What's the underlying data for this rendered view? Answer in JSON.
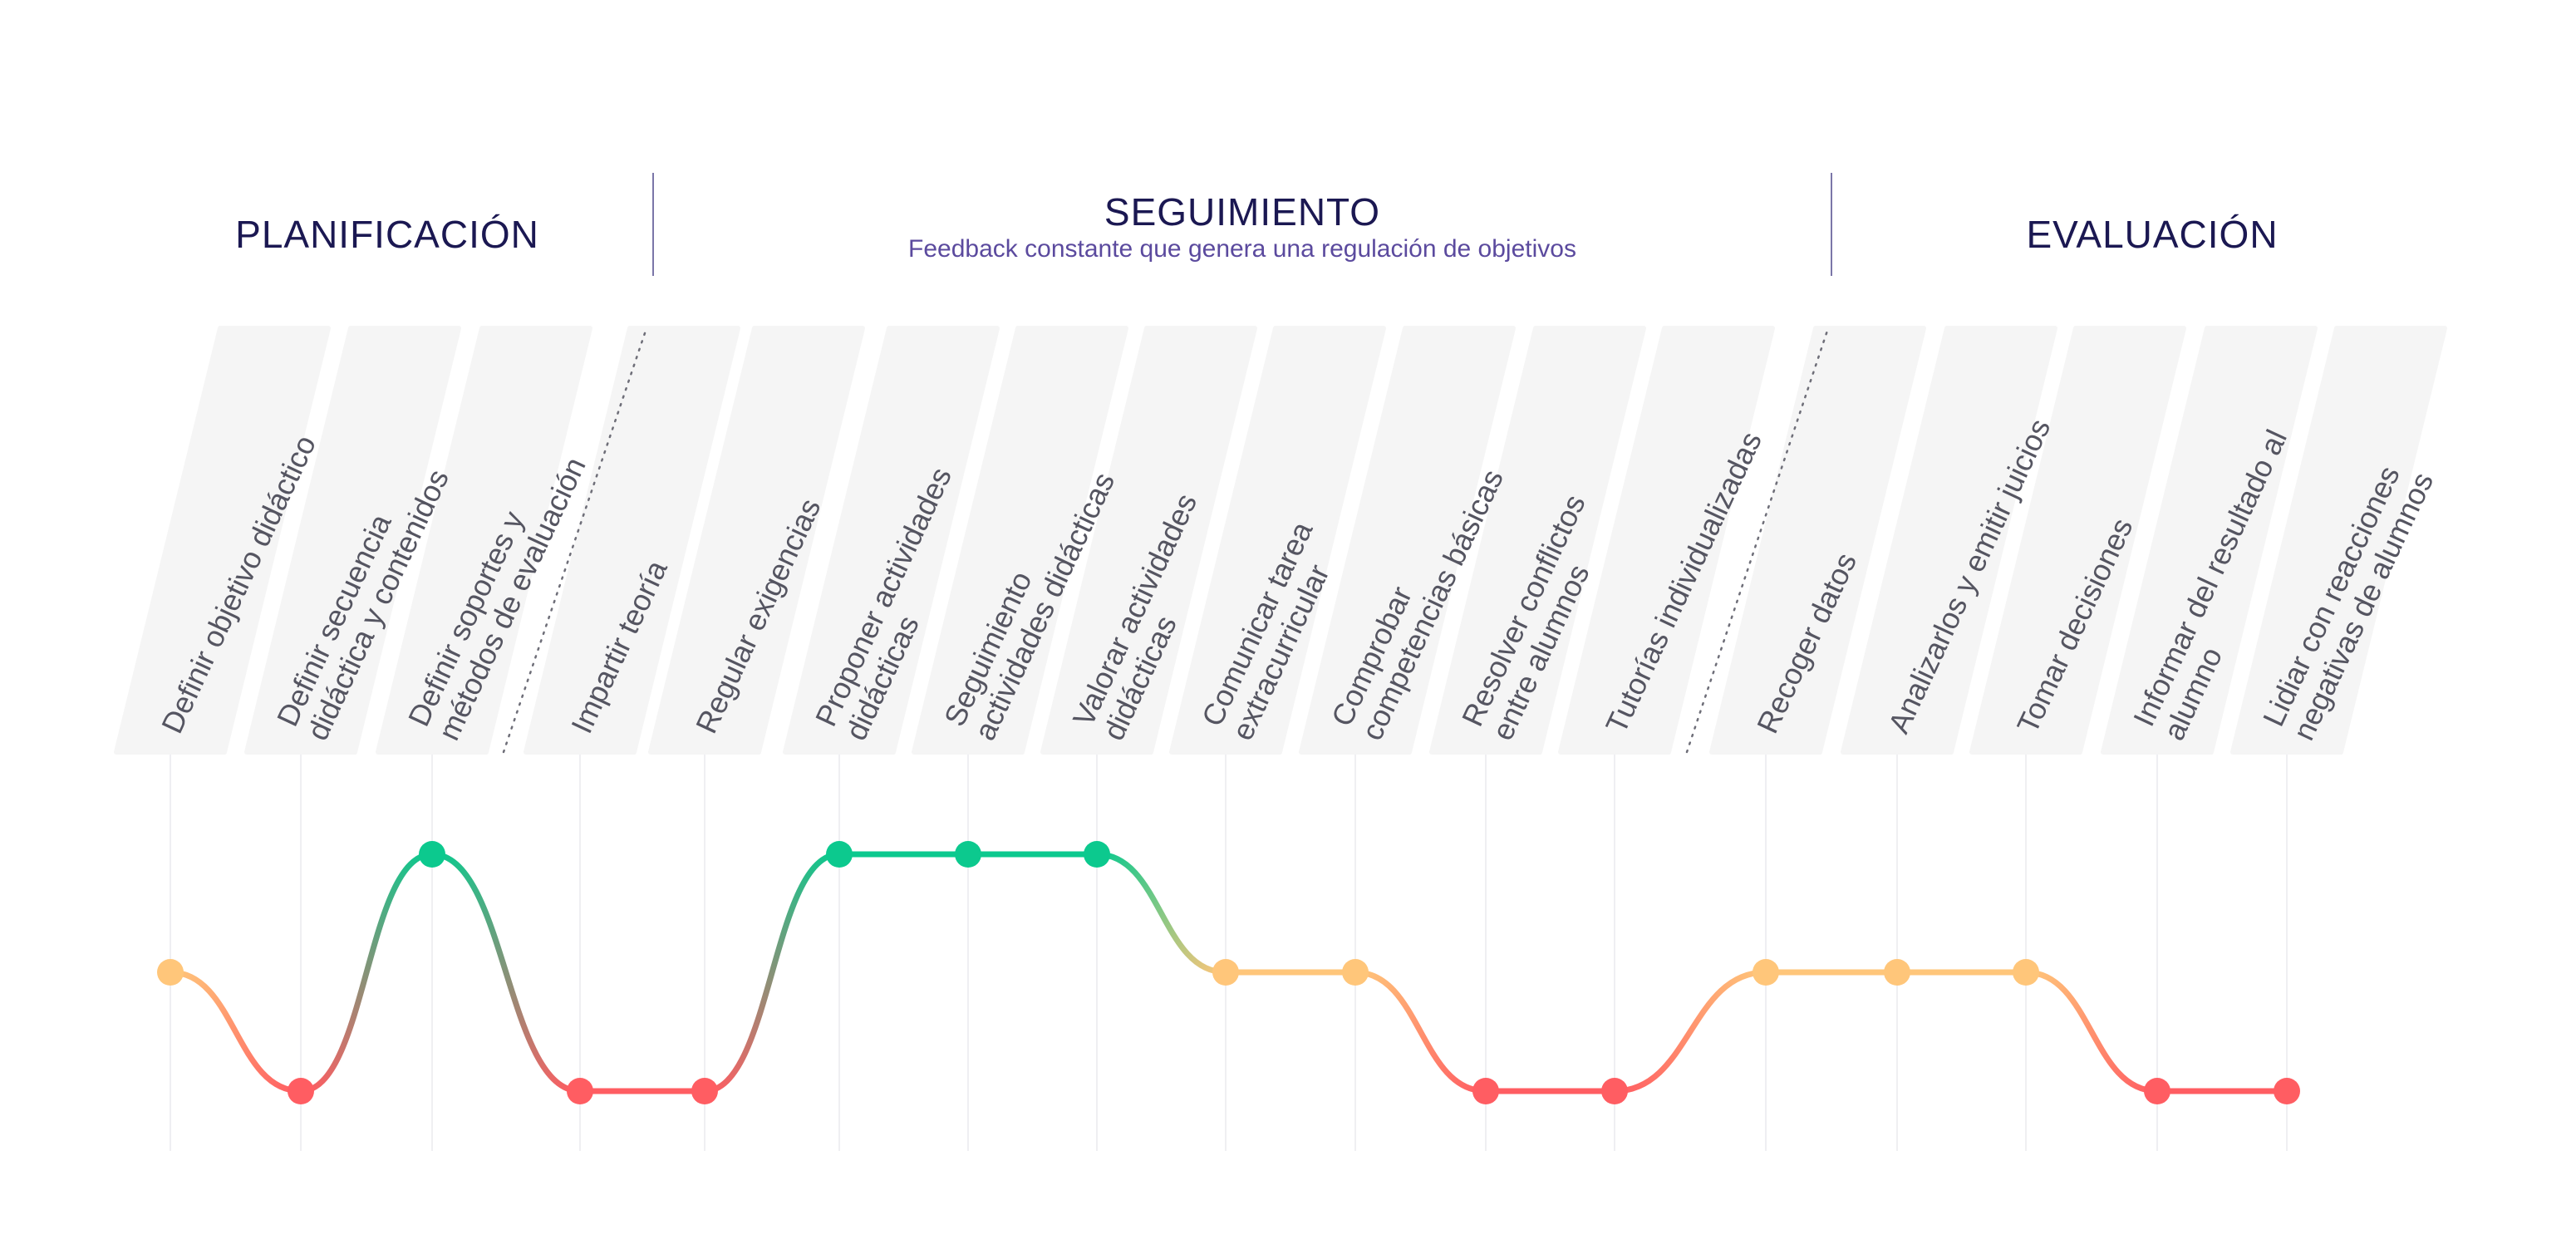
{
  "phases": {
    "planificacion": {
      "title": "PLANIFICACIÓN"
    },
    "seguimiento": {
      "title": "SEGUIMIENTO",
      "subtitle": "Feedback constante que genera una regulación de objetivos"
    },
    "evaluacion": {
      "title": "EVALUACIÓN"
    }
  },
  "steps": [
    {
      "lines": [
        "Definir objetivo didáctico"
      ],
      "level": "mid",
      "phase": "planificacion"
    },
    {
      "lines": [
        "Definir secuencia",
        "didáctica y contenidos"
      ],
      "level": "low",
      "phase": "planificacion"
    },
    {
      "lines": [
        "Definir soportes y",
        "métodos de evaluación"
      ],
      "level": "high",
      "phase": "planificacion"
    },
    {
      "lines": [
        "Impartir teoría"
      ],
      "level": "low",
      "phase": "seguimiento"
    },
    {
      "lines": [
        "Regular exigencias"
      ],
      "level": "low",
      "phase": "seguimiento"
    },
    {
      "lines": [
        "Proponer actividades",
        "didácticas"
      ],
      "level": "high",
      "phase": "seguimiento"
    },
    {
      "lines": [
        "Seguimiento",
        "actividades didácticas"
      ],
      "level": "high",
      "phase": "seguimiento"
    },
    {
      "lines": [
        "Valorar actividades",
        "didácticas"
      ],
      "level": "high",
      "phase": "seguimiento"
    },
    {
      "lines": [
        "Comunicar tarea",
        "extracurricular"
      ],
      "level": "mid",
      "phase": "seguimiento"
    },
    {
      "lines": [
        "Comprobar",
        "competencias básicas"
      ],
      "level": "mid",
      "phase": "seguimiento"
    },
    {
      "lines": [
        "Resolver conflictos",
        "entre alumnos"
      ],
      "level": "low",
      "phase": "seguimiento"
    },
    {
      "lines": [
        "Tutorías individualizadas"
      ],
      "level": "low",
      "phase": "seguimiento"
    },
    {
      "lines": [
        "Recoger datos"
      ],
      "level": "mid",
      "phase": "evaluacion"
    },
    {
      "lines": [
        "Analizarlos y emitir juicios"
      ],
      "level": "mid",
      "phase": "evaluacion"
    },
    {
      "lines": [
        "Tomar decisiones"
      ],
      "level": "mid",
      "phase": "evaluacion"
    },
    {
      "lines": [
        "Informar del resultado al",
        "alumno"
      ],
      "level": "low",
      "phase": "evaluacion"
    },
    {
      "lines": [
        "Lidiar con reacciones",
        "negativas de alumnos"
      ],
      "level": "low",
      "phase": "evaluacion"
    }
  ],
  "colors": {
    "high": "#0cc98e",
    "mid": "#ffc67a",
    "low": "#ff5d62",
    "card": "#f5f5f5",
    "title": "#1b1852",
    "subtitle": "#5b4a9e",
    "label": "#555561",
    "gridline": "#efeff2",
    "divider": "#7b76a8"
  }
}
